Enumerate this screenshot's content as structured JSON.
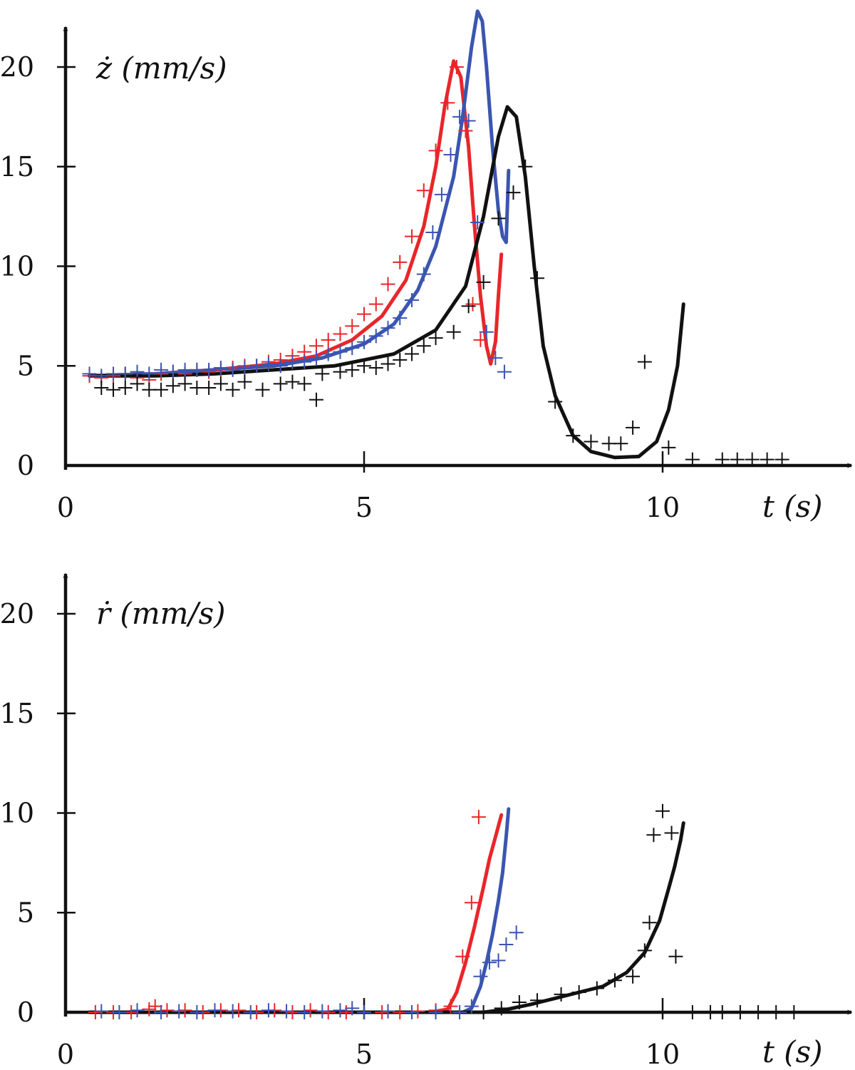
{
  "colors": {
    "axis": "#111111",
    "red": "#e8262a",
    "blue": "#3b55b0",
    "black": "#111111"
  },
  "chart_data": [
    {
      "type": "line",
      "ylabel": "ż (mm/s)",
      "xlabel": "t (s)",
      "xlim": [
        0,
        13
      ],
      "ylim": [
        0,
        22
      ],
      "xticks": [
        0,
        5,
        10
      ],
      "yticks": [
        0,
        5,
        10,
        15,
        20
      ],
      "x_tick_labels": [
        "0",
        "5",
        "10"
      ],
      "y_tick_labels": [
        "0",
        "5",
        "10",
        "15",
        "20"
      ],
      "grid": false,
      "series": [
        {
          "color": "#e8262a",
          "style": "line",
          "x": [
            0.4,
            1.5,
            2.5,
            3.5,
            4.2,
            4.8,
            5.3,
            5.7,
            6.0,
            6.2,
            6.35,
            6.5,
            6.62,
            6.75,
            6.85,
            6.95,
            7.05,
            7.12,
            7.2,
            7.25,
            7.3
          ],
          "y": [
            4.5,
            4.6,
            4.8,
            5.1,
            5.5,
            6.3,
            7.5,
            9.3,
            12.0,
            15.0,
            18.0,
            20.3,
            19.5,
            16.0,
            12.0,
            8.5,
            6.0,
            5.1,
            6.2,
            8.5,
            10.6
          ]
        },
        {
          "color": "#3b55b0",
          "style": "line",
          "x": [
            0.4,
            1.5,
            2.5,
            3.5,
            4.3,
            5.0,
            5.5,
            5.9,
            6.2,
            6.5,
            6.65,
            6.8,
            6.9,
            6.98,
            7.05,
            7.15,
            7.25,
            7.32,
            7.38,
            7.4,
            7.42
          ],
          "y": [
            4.5,
            4.6,
            4.8,
            5.0,
            5.4,
            6.1,
            7.1,
            8.8,
            11.0,
            14.5,
            17.5,
            21.0,
            22.8,
            22.3,
            20.0,
            16.0,
            12.8,
            11.5,
            11.2,
            13.0,
            14.8
          ]
        },
        {
          "color": "#111111",
          "style": "line",
          "x": [
            0.4,
            1.5,
            2.5,
            3.5,
            4.5,
            5.5,
            6.2,
            6.7,
            7.0,
            7.25,
            7.4,
            7.55,
            7.7,
            7.85,
            8.0,
            8.2,
            8.5,
            8.8,
            9.2,
            9.6,
            9.9,
            10.1,
            10.25,
            10.35
          ],
          "y": [
            4.5,
            4.5,
            4.6,
            4.8,
            5.0,
            5.6,
            6.8,
            9.0,
            12.5,
            16.5,
            18.0,
            17.5,
            14.5,
            10.0,
            6.0,
            3.5,
            1.5,
            0.7,
            0.4,
            0.45,
            1.2,
            2.8,
            5.0,
            8.1
          ]
        },
        {
          "color": "#e8262a",
          "style": "markers",
          "x": [
            0.4,
            0.6,
            0.8,
            1.0,
            1.2,
            1.4,
            1.6,
            1.8,
            2.0,
            2.2,
            2.4,
            2.6,
            2.8,
            3.0,
            3.2,
            3.4,
            3.6,
            3.8,
            4.0,
            4.2,
            4.4,
            4.6,
            4.8,
            5.0,
            5.2,
            5.4,
            5.6,
            5.8,
            6.0,
            6.2,
            6.4,
            6.55,
            6.7,
            6.82,
            6.95
          ],
          "y": [
            4.5,
            4.4,
            4.5,
            4.6,
            4.4,
            4.3,
            4.6,
            4.7,
            4.6,
            4.8,
            4.7,
            4.8,
            4.9,
            5.0,
            5.0,
            5.2,
            5.3,
            5.5,
            5.7,
            6.0,
            6.3,
            6.6,
            7.0,
            7.6,
            8.1,
            9.1,
            10.2,
            11.5,
            13.8,
            15.8,
            18.2,
            20.0,
            16.8,
            8.1,
            6.3
          ]
        },
        {
          "color": "#3b55b0",
          "style": "markers",
          "x": [
            0.4,
            0.6,
            0.8,
            1.0,
            1.2,
            1.4,
            1.6,
            1.8,
            2.0,
            2.2,
            2.4,
            2.6,
            2.8,
            3.0,
            3.2,
            3.4,
            3.6,
            3.8,
            4.0,
            4.2,
            4.4,
            4.6,
            4.8,
            5.0,
            5.2,
            5.4,
            5.6,
            5.8,
            6.0,
            6.15,
            6.3,
            6.45,
            6.6,
            6.75,
            6.9,
            7.05,
            7.2,
            7.35
          ],
          "y": [
            4.6,
            4.5,
            4.6,
            4.6,
            4.7,
            4.6,
            4.8,
            4.7,
            4.8,
            4.8,
            4.8,
            4.9,
            4.8,
            4.9,
            5.0,
            5.1,
            5.0,
            5.2,
            5.2,
            5.4,
            5.6,
            5.7,
            5.9,
            6.2,
            6.5,
            6.9,
            7.4,
            8.3,
            9.6,
            11.7,
            13.6,
            15.6,
            17.5,
            17.3,
            12.2,
            6.7,
            5.4,
            4.7
          ]
        },
        {
          "color": "#111111",
          "style": "markers",
          "x": [
            0.6,
            0.8,
            1.0,
            1.2,
            1.4,
            1.6,
            1.8,
            2.0,
            2.2,
            2.4,
            2.6,
            2.8,
            3.0,
            3.3,
            3.6,
            3.8,
            4.0,
            4.2,
            4.3,
            4.6,
            4.8,
            5.0,
            5.2,
            5.4,
            5.6,
            5.8,
            6.0,
            6.2,
            6.5,
            6.75,
            7.0,
            7.25,
            7.5,
            7.7,
            7.9,
            8.2,
            8.5,
            8.8,
            9.1,
            9.3,
            9.5,
            9.7,
            10.1,
            10.5,
            11.0,
            11.25,
            11.5,
            11.75,
            12.0
          ],
          "y": [
            3.9,
            3.8,
            3.9,
            4.1,
            3.8,
            3.8,
            4.0,
            4.1,
            3.9,
            3.9,
            4.1,
            3.8,
            4.2,
            3.8,
            4.1,
            4.2,
            4.1,
            3.3,
            4.6,
            4.7,
            4.8,
            5.0,
            4.9,
            5.1,
            5.3,
            5.6,
            6.0,
            6.4,
            6.7,
            8.0,
            9.2,
            12.4,
            13.7,
            15.0,
            9.4,
            3.2,
            1.5,
            1.2,
            1.1,
            1.1,
            1.9,
            5.2,
            0.9,
            0.3,
            0.3,
            0.3,
            0.3,
            0.3,
            0.3
          ]
        }
      ]
    },
    {
      "type": "line",
      "ylabel": "ṙ (mm/s)",
      "xlabel": "t (s)",
      "xlim": [
        0,
        13
      ],
      "ylim": [
        0,
        22
      ],
      "xticks": [
        0,
        5,
        10
      ],
      "yticks": [
        0,
        5,
        10,
        15,
        20
      ],
      "x_tick_labels": [
        "0",
        "5",
        "10"
      ],
      "y_tick_labels": [
        "0",
        "5",
        "10",
        "15",
        "20"
      ],
      "grid": false,
      "series": [
        {
          "color": "#e8262a",
          "style": "line",
          "x": [
            0.4,
            2.0,
            4.0,
            5.5,
            6.1,
            6.4,
            6.55,
            6.7,
            6.85,
            7.0,
            7.1,
            7.2,
            7.3
          ],
          "y": [
            0.0,
            0.0,
            0.0,
            0.0,
            0.0,
            0.15,
            1.0,
            2.5,
            4.3,
            6.3,
            7.7,
            8.8,
            9.9
          ]
        },
        {
          "color": "#3b55b0",
          "style": "line",
          "x": [
            0.4,
            2.0,
            4.0,
            6.0,
            6.65,
            6.8,
            6.95,
            7.05,
            7.15,
            7.25,
            7.32,
            7.38,
            7.42
          ],
          "y": [
            0.0,
            0.0,
            0.0,
            0.0,
            0.0,
            0.2,
            1.3,
            2.5,
            3.9,
            5.6,
            7.0,
            8.8,
            10.2
          ]
        },
        {
          "color": "#111111",
          "style": "line",
          "x": [
            0.4,
            3.0,
            6.0,
            7.0,
            7.4,
            7.8,
            8.2,
            8.6,
            9.0,
            9.4,
            9.7,
            9.95,
            10.1,
            10.2,
            10.3,
            10.35
          ],
          "y": [
            0.0,
            0.0,
            0.0,
            0.0,
            0.15,
            0.4,
            0.7,
            1.0,
            1.3,
            2.0,
            3.0,
            4.6,
            6.2,
            7.3,
            8.6,
            9.5
          ]
        },
        {
          "color": "#e8262a",
          "style": "markers",
          "x": [
            0.5,
            0.8,
            1.1,
            1.4,
            1.5,
            1.7,
            2.0,
            2.3,
            2.6,
            2.9,
            3.2,
            3.5,
            3.8,
            4.1,
            4.4,
            4.7,
            5.0,
            5.3,
            5.6,
            5.9,
            6.2,
            6.45,
            6.65,
            6.8,
            6.92
          ],
          "y": [
            0.0,
            0.0,
            0.0,
            0.15,
            0.3,
            0.1,
            0.1,
            0.0,
            0.1,
            0.1,
            0.0,
            0.1,
            0.0,
            0.1,
            0.0,
            0.0,
            0.0,
            0.0,
            0.0,
            0.05,
            0.1,
            0.3,
            2.8,
            5.5,
            9.8
          ]
        },
        {
          "color": "#3b55b0",
          "style": "markers",
          "x": [
            0.6,
            0.9,
            1.2,
            1.6,
            1.9,
            2.2,
            2.5,
            2.8,
            3.1,
            3.4,
            3.7,
            4.0,
            4.3,
            4.6,
            4.8,
            5.0,
            5.4,
            5.8,
            6.2,
            6.6,
            6.8,
            6.95,
            7.1,
            7.25,
            7.38,
            7.55
          ],
          "y": [
            0.05,
            0.0,
            0.1,
            0.0,
            0.05,
            0.0,
            0.1,
            0.05,
            0.0,
            0.1,
            0.05,
            0.0,
            0.05,
            0.1,
            0.2,
            0.0,
            0.05,
            0.0,
            0.0,
            0.0,
            0.3,
            1.8,
            2.5,
            2.6,
            3.4,
            4.0
          ]
        },
        {
          "color": "#111111",
          "style": "markers",
          "x": [
            7.0,
            7.3,
            7.6,
            7.9,
            8.3,
            8.6,
            8.9,
            9.2,
            9.5,
            9.7,
            9.78,
            9.85,
            10.0,
            10.15,
            10.22,
            10.5,
            10.8,
            11.0,
            11.3,
            11.6,
            11.9,
            12.2
          ],
          "y": [
            0.0,
            0.2,
            0.5,
            0.6,
            0.9,
            1.0,
            1.2,
            1.6,
            1.8,
            3.1,
            4.5,
            8.9,
            10.1,
            9.0,
            2.8,
            0.0,
            0.0,
            0.0,
            0.0,
            0.0,
            0.0,
            0.0
          ]
        }
      ]
    }
  ]
}
